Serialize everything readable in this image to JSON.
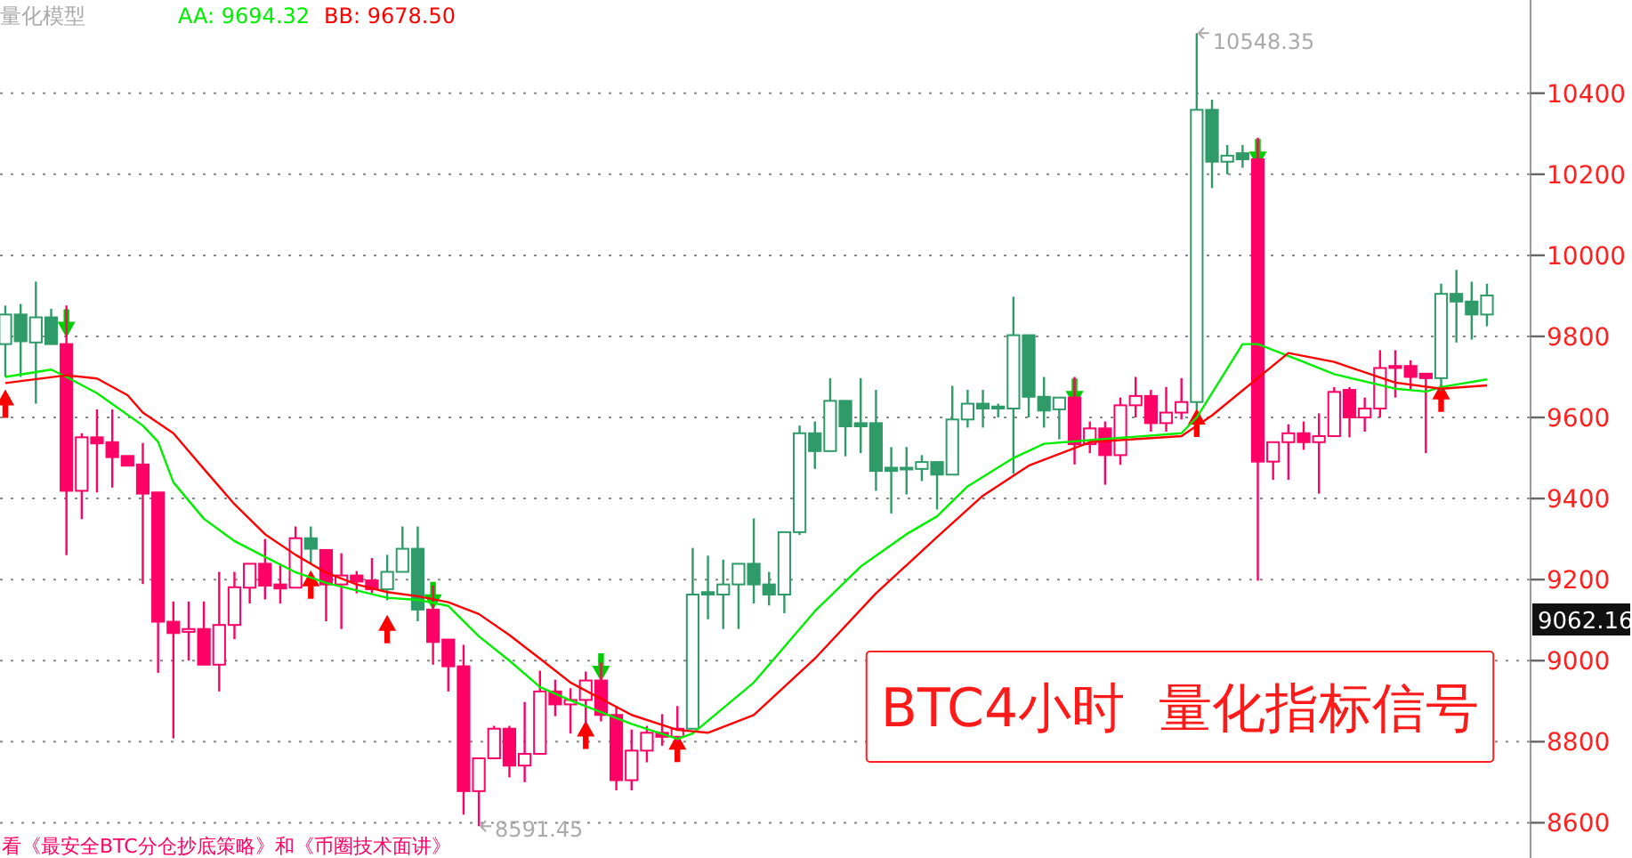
{
  "chart_data": {
    "type": "candlestick",
    "title": "量化模型",
    "categories": [
      null,
      null,
      null,
      null,
      null,
      null,
      null,
      null,
      null,
      null,
      null,
      null,
      null,
      null,
      null,
      null,
      null,
      null,
      null,
      null,
      null,
      null,
      null,
      null,
      null,
      null,
      null,
      null,
      null,
      null,
      null,
      null,
      null,
      null,
      null,
      null,
      null,
      null,
      null,
      null,
      null,
      null,
      null,
      null,
      null,
      null,
      null,
      null,
      null,
      null,
      null,
      null,
      null,
      null,
      null,
      null,
      null,
      null,
      null,
      null,
      null,
      null,
      null,
      null,
      null,
      null,
      null,
      null,
      null,
      null,
      null,
      null,
      null,
      null,
      null,
      null,
      null,
      null,
      null,
      null,
      null,
      null,
      null,
      null,
      null,
      null,
      null,
      null,
      null,
      null,
      null,
      null,
      null,
      null,
      null,
      null,
      null,
      null
    ],
    "ohlc": [
      [
        9781,
        9876,
        9700,
        9854
      ],
      [
        9854,
        9880,
        9700,
        9788
      ],
      [
        9785,
        9935,
        9634,
        9847
      ],
      [
        9847,
        9868,
        9781,
        9781
      ],
      [
        9781,
        9876,
        9260,
        9419
      ],
      [
        9419,
        9561,
        9349,
        9551
      ],
      [
        9551,
        9620,
        9415,
        9536
      ],
      [
        9539,
        9620,
        9427,
        9502
      ],
      [
        9505,
        9505,
        9481,
        9481
      ],
      [
        9484,
        9537,
        9189,
        9412
      ],
      [
        9415,
        9415,
        8970,
        9096
      ],
      [
        9096,
        9146,
        8808,
        9068
      ],
      [
        9071,
        9146,
        9000,
        9078
      ],
      [
        9078,
        9146,
        8990,
        8990
      ],
      [
        8990,
        9219,
        8924,
        9088
      ],
      [
        9088,
        9219,
        9053,
        9181
      ],
      [
        9180,
        9239,
        9141,
        9239
      ],
      [
        9239,
        9300,
        9151,
        9185
      ],
      [
        9188,
        9239,
        9141,
        9178
      ],
      [
        9180,
        9331,
        9180,
        9302
      ],
      [
        9302,
        9331,
        9239,
        9276
      ],
      [
        9273,
        9273,
        9097,
        9188
      ],
      [
        9188,
        9265,
        9078,
        9210
      ],
      [
        9210,
        9221,
        9166,
        9195
      ],
      [
        9198,
        9253,
        9166,
        9176
      ],
      [
        9176,
        9261,
        9149,
        9219
      ],
      [
        9219,
        9331,
        9219,
        9276
      ],
      [
        9276,
        9331,
        9097,
        9126
      ],
      [
        9126,
        9185,
        8990,
        9046
      ],
      [
        9052,
        9052,
        8924,
        8986
      ],
      [
        8986,
        9039,
        8620,
        8678
      ],
      [
        8678,
        8759,
        8591.45,
        8759
      ],
      [
        8759,
        8839,
        8759,
        8832
      ],
      [
        8832,
        8839,
        8712,
        8741
      ],
      [
        8741,
        8898,
        8700,
        8770
      ],
      [
        8770,
        8975,
        8770,
        8924
      ],
      [
        8924,
        8953,
        8863,
        8892
      ],
      [
        8892,
        8932,
        8820,
        8903
      ],
      [
        8903,
        8973,
        8844,
        8951
      ],
      [
        8951,
        8995,
        8850,
        8866
      ],
      [
        8866,
        8888,
        8680,
        8705
      ],
      [
        8705,
        8830,
        8680,
        8778
      ],
      [
        8778,
        8839,
        8749,
        8822
      ],
      [
        8822,
        8868,
        8790,
        8812
      ],
      [
        8812,
        8888,
        8800,
        8832
      ],
      [
        8832,
        9278,
        8832,
        9163
      ],
      [
        9169,
        9259,
        9102,
        9163
      ],
      [
        9163,
        9249,
        9078,
        9188
      ],
      [
        9188,
        9239,
        9078,
        9239
      ],
      [
        9239,
        9351,
        9141,
        9188
      ],
      [
        9188,
        9219,
        9136,
        9163
      ],
      [
        9163,
        9317,
        9117,
        9317
      ],
      [
        9317,
        9580,
        9310,
        9561
      ],
      [
        9561,
        9590,
        9473,
        9517
      ],
      [
        9517,
        9697,
        9517,
        9641
      ],
      [
        9641,
        9641,
        9504,
        9578
      ],
      [
        9586,
        9697,
        9512,
        9578
      ],
      [
        9586,
        9668,
        9419,
        9468
      ],
      [
        9476,
        9527,
        9363,
        9468
      ],
      [
        9476,
        9527,
        9410,
        9473
      ],
      [
        9473,
        9507,
        9443,
        9490
      ],
      [
        9490,
        9490,
        9373,
        9459
      ],
      [
        9459,
        9678,
        9459,
        9595
      ],
      [
        9595,
        9668,
        9575,
        9634
      ],
      [
        9634,
        9668,
        9575,
        9622
      ],
      [
        9627,
        9634,
        9600,
        9622
      ],
      [
        9622,
        9898,
        9461,
        9803
      ],
      [
        9803,
        9803,
        9600,
        9651
      ],
      [
        9651,
        9700,
        9575,
        9617
      ],
      [
        9620,
        9649,
        9546,
        9649
      ],
      [
        9649,
        9700,
        9484,
        9534
      ],
      [
        9534,
        9590,
        9512,
        9573
      ],
      [
        9573,
        9590,
        9434,
        9507
      ],
      [
        9507,
        9649,
        9483,
        9630
      ],
      [
        9630,
        9700,
        9600,
        9653
      ],
      [
        9653,
        9668,
        9565,
        9586
      ],
      [
        9586,
        9675,
        9565,
        9612
      ],
      [
        9612,
        9697,
        9595,
        9638
      ],
      [
        9638,
        10548.35,
        9620,
        10359
      ],
      [
        10359,
        10384,
        10166,
        10231
      ],
      [
        10231,
        10272,
        10200,
        10246
      ],
      [
        10252,
        10272,
        10216,
        10237
      ],
      [
        10237,
        10290,
        9197,
        9491
      ],
      [
        9491,
        9539,
        9446,
        9539
      ],
      [
        9539,
        9583,
        9446,
        9561
      ],
      [
        9561,
        9590,
        9520,
        9539
      ],
      [
        9539,
        9610,
        9412,
        9554
      ],
      [
        9554,
        9675,
        9554,
        9663
      ],
      [
        9668,
        9675,
        9551,
        9600
      ],
      [
        9600,
        9649,
        9565,
        9622
      ],
      [
        9622,
        9766,
        9600,
        9722
      ],
      [
        9727,
        9766,
        9649,
        9722
      ],
      [
        9727,
        9741,
        9670,
        9700
      ],
      [
        9708,
        9708,
        9512,
        9697
      ],
      [
        9697,
        9930,
        9666,
        9905
      ],
      [
        9905,
        9964,
        9785,
        9886
      ],
      [
        9886,
        9935,
        9792,
        9854
      ],
      [
        9854,
        9930,
        9825,
        9901
      ]
    ],
    "colors": [
      "#2e9b68",
      "#2e9b68",
      "#2e9b68",
      "#2e9b68",
      "#ff0066",
      "#ff0066",
      "#ff0066",
      "#ff0066",
      "#ff0066",
      "#ff0066",
      "#ff0066",
      "#ff0066",
      "#ff0066",
      "#ff0066",
      "#ff0066",
      "#ff0066",
      "#ff0066",
      "#ff0066",
      "#ff0066",
      "#ff0066",
      "#2e9b68",
      "#ff0066",
      "#ff0066",
      "#ff0066",
      "#ff0066",
      "#2e9b68",
      "#2e9b68",
      "#2e9b68",
      "#ff0066",
      "#ff0066",
      "#ff0066",
      "#ff0066",
      "#ff0066",
      "#ff0066",
      "#ff0066",
      "#ff0066",
      "#ff0066",
      "#ff0066",
      "#ff0066",
      "#ff0066",
      "#ff0066",
      "#ff0066",
      "#ff0066",
      "#ff0066",
      "#ff0066",
      "#2e9b68",
      "#2e9b68",
      "#2e9b68",
      "#2e9b68",
      "#2e9b68",
      "#2e9b68",
      "#2e9b68",
      "#2e9b68",
      "#2e9b68",
      "#2e9b68",
      "#2e9b68",
      "#2e9b68",
      "#2e9b68",
      "#2e9b68",
      "#2e9b68",
      "#2e9b68",
      "#2e9b68",
      "#2e9b68",
      "#2e9b68",
      "#2e9b68",
      "#2e9b68",
      "#2e9b68",
      "#2e9b68",
      "#2e9b68",
      "#2e9b68",
      "#ff0066",
      "#ff0066",
      "#ff0066",
      "#ff0066",
      "#ff0066",
      "#ff0066",
      "#ff0066",
      "#ff0066",
      "#2e9b68",
      "#2e9b68",
      "#2e9b68",
      "#2e9b68",
      "#ff0066",
      "#ff0066",
      "#ff0066",
      "#ff0066",
      "#ff0066",
      "#ff0066",
      "#ff0066",
      "#ff0066",
      "#ff0066",
      "#ff0066",
      "#ff0066",
      "#ff0066",
      "#2e9b68",
      "#2e9b68",
      "#2e9b68",
      "#2e9b68"
    ],
    "series": [
      {
        "name": "AA: 9694.32",
        "type": "line",
        "color": "#00ee00",
        "values": [
          9700,
          null,
          null,
          9718,
          9700,
          null,
          9660,
          null,
          null,
          9580,
          9540,
          9440,
          null,
          9350,
          null,
          9295,
          null,
          9256,
          null,
          9218,
          null,
          9192,
          null,
          9173,
          null,
          9155,
          null,
          9150,
          null,
          9135,
          null,
          9060,
          null,
          9000,
          null,
          8935,
          null,
          8902,
          null,
          null,
          null,
          8844,
          null,
          null,
          8807,
          8820,
          null,
          null,
          null,
          8946,
          null,
          null,
          null,
          9122,
          null,
          null,
          9232,
          null,
          null,
          9312,
          null,
          9356,
          null,
          9430,
          null,
          null,
          9500,
          null,
          9535,
          null,
          null,
          9544,
          null,
          null,
          null,
          null,
          null,
          9561,
          9600,
          null,
          null,
          9781,
          9781,
          null,
          null,
          9737,
          null,
          9707,
          null,
          null,
          null,
          9671,
          null,
          9664,
          9675,
          null,
          null,
          9694
        ]
      },
      {
        "name": "BB: 9678.50",
        "type": "line",
        "color": "#ff0000",
        "values": [
          9685,
          null,
          null,
          null,
          9704,
          null,
          9696,
          null,
          9655,
          9612,
          null,
          9561,
          null,
          9473,
          null,
          9386,
          null,
          9312,
          null,
          9261,
          null,
          9217,
          null,
          9188,
          null,
          9169,
          null,
          9159,
          null,
          9144,
          null,
          9115,
          null,
          9063,
          null,
          9005,
          null,
          8946,
          null,
          null,
          null,
          8866,
          null,
          null,
          8829,
          null,
          8822,
          null,
          null,
          8866,
          null,
          null,
          null,
          9005,
          null,
          null,
          null,
          9166,
          null,
          null,
          null,
          9305,
          null,
          null,
          9407,
          null,
          null,
          9481,
          null,
          null,
          null,
          9539,
          null,
          null,
          null,
          null,
          null,
          9554,
          null,
          9605,
          null,
          null,
          null,
          null,
          9759,
          null,
          null,
          9737,
          null,
          null,
          null,
          9686,
          null,
          null,
          9671,
          null,
          null,
          9679
        ]
      },
      {
        "type": "scatter",
        "marker": "triangle",
        "color": "#ff0000",
        "values": [
          9634,
          null,
          null,
          null,
          null,
          null,
          null,
          null,
          null,
          null,
          null,
          null,
          null,
          null,
          null,
          null,
          null,
          null,
          null,
          null,
          9188,
          null,
          null,
          null,
          null,
          9078,
          null,
          null,
          null,
          null,
          null,
          null,
          null,
          null,
          null,
          null,
          null,
          null,
          8817,
          null,
          null,
          null,
          null,
          null,
          8785,
          null,
          null,
          null,
          null,
          null,
          null,
          null,
          null,
          null,
          null,
          null,
          null,
          null,
          null,
          null,
          null,
          null,
          null,
          null,
          null,
          null,
          null,
          null,
          null,
          null,
          null,
          null,
          null,
          null,
          null,
          null,
          null,
          null,
          9587,
          null,
          null,
          null,
          null,
          null,
          null,
          null,
          null,
          null,
          null,
          null,
          null,
          null,
          null,
          null,
          9649,
          null,
          null,
          null
        ]
      },
      {
        "type": "scatter",
        "marker": "triangle",
        "color": "#00cc00",
        "values": [
          null,
          null,
          null,
          null,
          9832,
          null,
          null,
          null,
          null,
          null,
          null,
          null,
          null,
          null,
          null,
          null,
          null,
          null,
          null,
          null,
          null,
          null,
          null,
          null,
          null,
          null,
          null,
          null,
          9159,
          null,
          null,
          null,
          null,
          null,
          null,
          null,
          null,
          null,
          null,
          8983,
          null,
          null,
          null,
          null,
          null,
          null,
          null,
          null,
          null,
          null,
          null,
          null,
          null,
          null,
          null,
          null,
          null,
          null,
          null,
          null,
          null,
          null,
          null,
          null,
          null,
          null,
          null,
          null,
          null,
          null,
          9661,
          null,
          null,
          null,
          null,
          null,
          null,
          null,
          null,
          null,
          null,
          null,
          10252,
          null,
          null,
          null,
          null,
          null,
          null,
          null,
          null,
          null,
          null,
          null,
          null,
          null,
          null,
          null
        ]
      }
    ],
    "ylim": [
      8513,
      10630
    ],
    "yticks": [
      8600,
      8800,
      9000,
      9200,
      9400,
      9600,
      9800,
      10000,
      10200,
      10400
    ],
    "grid": "y",
    "legend": "top left",
    "annotations": [
      "10548.35",
      "8591.45",
      "BTC4小时  量化指标信号",
      "看《最安全BTC分仓抄底策略》和《币圈技术面讲》",
      "9062.16"
    ]
  }
}
